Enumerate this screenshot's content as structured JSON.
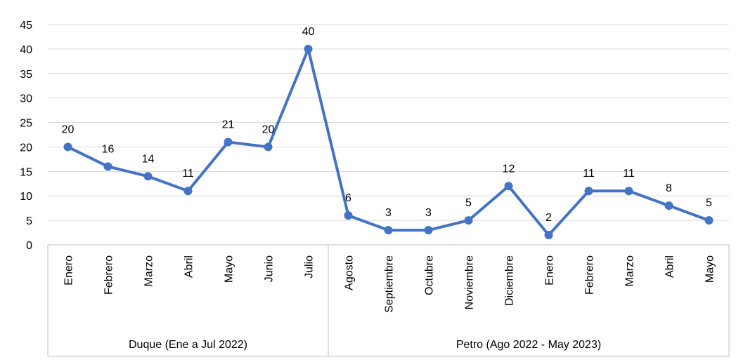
{
  "chart_data": {
    "type": "line",
    "title": "",
    "xlabel": "",
    "ylabel": "",
    "ylim": [
      0,
      45
    ],
    "yticks": [
      0,
      5,
      10,
      15,
      20,
      25,
      30,
      35,
      40,
      45
    ],
    "grid": true,
    "legend": "none",
    "line_color": "#4472C4",
    "categories": [
      "Enero",
      "Febrero",
      "Marzo",
      "Abril",
      "Mayo",
      "Junio",
      "Julio",
      "Agosto",
      "Septiembre",
      "Octubre",
      "Noviembre",
      "Diciembre",
      "Enero",
      "Febrero",
      "Marzo",
      "Abril",
      "Mayo"
    ],
    "values": [
      20,
      16,
      14,
      11,
      21,
      20,
      40,
      6,
      3,
      3,
      5,
      12,
      2,
      11,
      11,
      8,
      5
    ],
    "groups": [
      {
        "label": "Duque (Ene a Jul 2022)",
        "start": 0,
        "end": 6
      },
      {
        "label": "Petro (Ago 2022 - May 2023)",
        "start": 7,
        "end": 16
      }
    ]
  }
}
